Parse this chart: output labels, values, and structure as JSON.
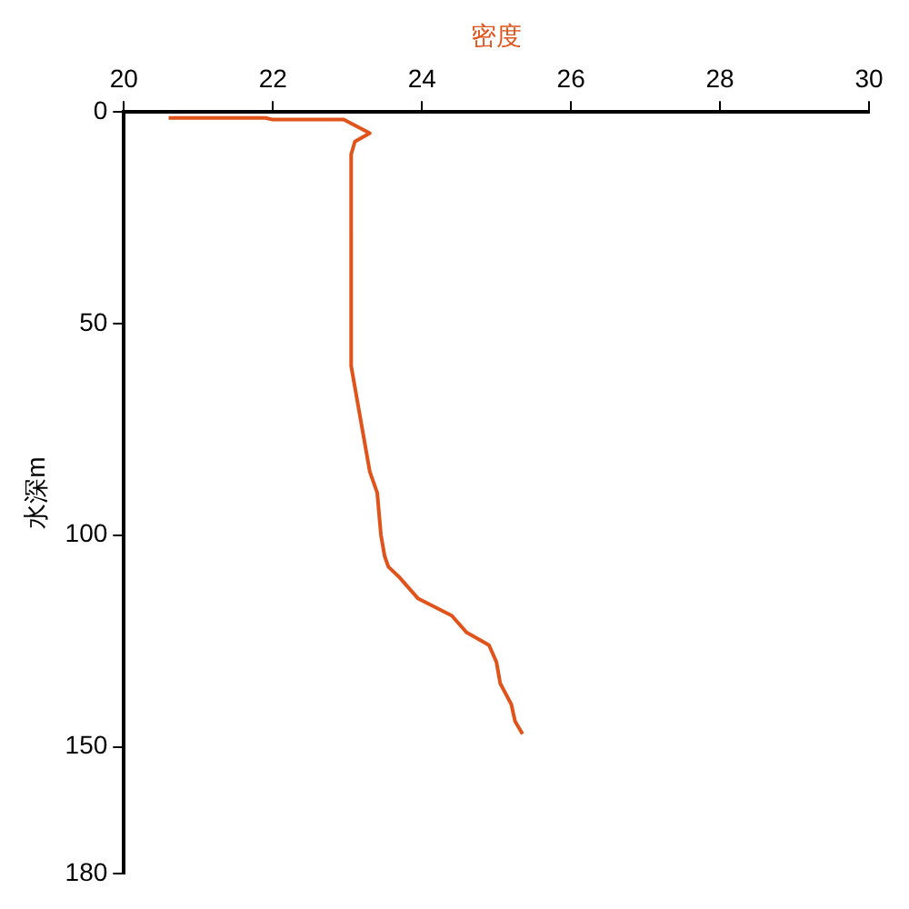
{
  "chart_data": {
    "type": "line",
    "xlabel": "密度",
    "ylabel": "水深m",
    "xlim": [
      20,
      30
    ],
    "xticks": [
      20,
      22,
      24,
      26,
      28,
      30
    ],
    "ylim": [
      180,
      0
    ],
    "yticks": [
      0,
      50,
      100,
      150,
      180
    ],
    "grid": false,
    "legend": false,
    "marker": "none",
    "line_style": "solid",
    "series": [
      {
        "color": "#e0531a",
        "x": [
          20.6,
          21.9,
          22.0,
          22.95,
          23.3,
          23.1,
          23.05,
          23.05,
          23.1,
          23.2,
          23.25,
          23.3,
          23.4,
          23.45,
          23.5,
          23.55,
          23.7,
          23.95,
          24.4,
          24.6,
          24.9,
          25.0,
          25.05,
          25.2,
          25.25,
          25.35
        ],
        "values": [
          1.4,
          1.4,
          1.8,
          1.8,
          5,
          7,
          10,
          60,
          65,
          75,
          80,
          85,
          90,
          100,
          105,
          107.5,
          110,
          115,
          119,
          123,
          126,
          130,
          135,
          140,
          144,
          147
        ]
      }
    ]
  }
}
